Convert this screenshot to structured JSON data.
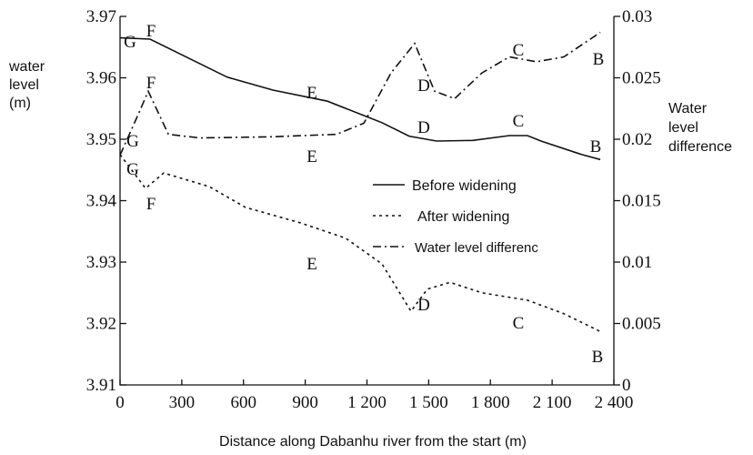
{
  "chart_data": {
    "type": "line",
    "ylabel": [
      "water",
      "level",
      "(m)"
    ],
    "y2label": [
      "Water",
      "level",
      "difference"
    ],
    "xlabel": "Distance along Dabanhu river from the start (m)",
    "xlim": [
      0,
      2400
    ],
    "xticks": [
      0,
      300,
      600,
      900,
      {
        "value": 1200,
        "label": "1 200"
      },
      {
        "value": 1500,
        "label": "1 500"
      },
      {
        "value": 1800,
        "label": "1 800"
      },
      {
        "value": 2100,
        "label": "2 100"
      },
      {
        "value": 2400,
        "label": "2 400"
      }
    ],
    "ylim": [
      3.91,
      3.97
    ],
    "yticks": [
      3.91,
      3.92,
      3.93,
      3.94,
      3.95,
      3.96,
      3.97
    ],
    "y2lim": [
      0,
      0.03
    ],
    "y2ticks": [
      0,
      0.005,
      0.01,
      0.015,
      0.02,
      0.025,
      0.03
    ],
    "legend": "center",
    "annotations": [
      "G",
      "G",
      "G",
      "F",
      "F",
      "F",
      "E",
      "E",
      "E",
      "D",
      "D",
      "D",
      "C",
      "C",
      "C",
      "B",
      "B",
      "B"
    ],
    "series": [
      {
        "name": "Before widening",
        "color": "#111111",
        "dash": "solid",
        "x": [
          0,
          146,
          521,
          743,
          1008,
          1273,
          1405,
          1538,
          1715,
          1892,
          1980,
          2046,
          2245,
          2334
        ],
        "values": [
          3.9665,
          3.9663,
          3.9601,
          3.958,
          3.9562,
          3.9527,
          3.9505,
          3.9497,
          3.9498,
          3.9506,
          3.9506,
          3.9497,
          3.9475,
          3.9467
        ]
      },
      {
        "name": "After widening",
        "color": "#111111",
        "dash": "dotted",
        "x": [
          0,
          124,
          212,
          433,
          610,
          875,
          1096,
          1273,
          1414,
          1494,
          1604,
          1759,
          1980,
          2157,
          2334
        ],
        "values": [
          3.9475,
          3.942,
          3.9445,
          3.9423,
          3.9389,
          3.9364,
          3.9339,
          3.9297,
          3.922,
          3.9256,
          3.9267,
          3.925,
          3.9238,
          3.9216,
          3.9187
        ]
      },
      {
        "name": "Water level differenc",
        "color": "#111111",
        "dash": "dashdot",
        "axis": "y2",
        "x": [
          0,
          80,
          137,
          235,
          389,
          743,
          1052,
          1185,
          1317,
          1432,
          1529,
          1626,
          1759,
          1892,
          2024,
          2157,
          2334
        ],
        "values": [
          0.0187,
          0.0217,
          0.0239,
          0.0204,
          0.0201,
          0.0202,
          0.0204,
          0.0213,
          0.0254,
          0.0278,
          0.0239,
          0.0233,
          0.0254,
          0.0267,
          0.0263,
          0.0267,
          0.0287
        ]
      }
    ]
  }
}
